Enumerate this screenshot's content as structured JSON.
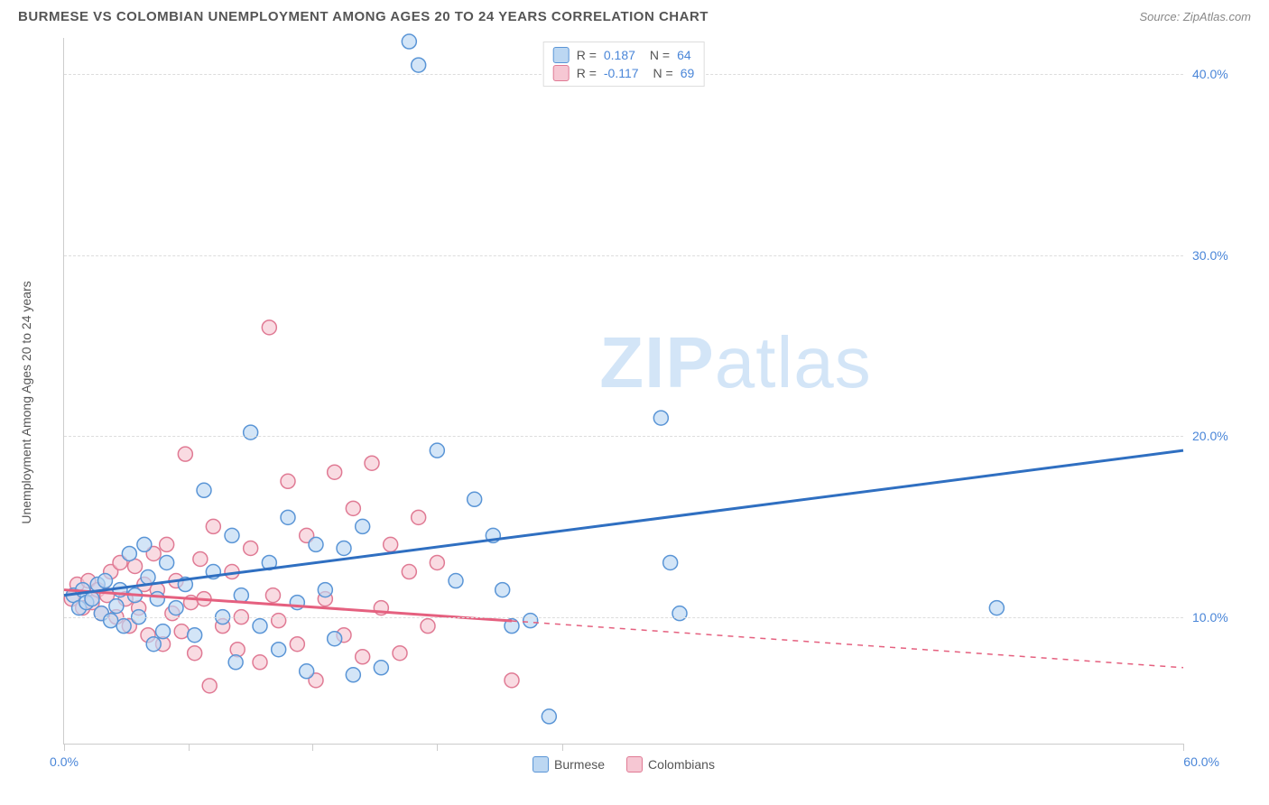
{
  "header": {
    "title": "BURMESE VS COLOMBIAN UNEMPLOYMENT AMONG AGES 20 TO 24 YEARS CORRELATION CHART",
    "source": "Source: ZipAtlas.com"
  },
  "watermark": {
    "zip": "ZIP",
    "atlas": "atlas"
  },
  "axes": {
    "ylabel": "Unemployment Among Ages 20 to 24 years",
    "x_min": 0,
    "x_max": 60,
    "y_min": 3,
    "y_max": 42,
    "x_origin_label": "0.0%",
    "x_max_label": "60.0%",
    "y_ticks": [
      10,
      20,
      30,
      40
    ],
    "y_tick_labels": [
      "10.0%",
      "20.0%",
      "30.0%",
      "40.0%"
    ],
    "x_tick_positions": [
      0,
      6.7,
      13.3,
      20,
      26.7,
      60
    ],
    "grid_color": "#dddddd",
    "axis_color": "#cccccc",
    "tick_label_color": "#4a86d8"
  },
  "series": {
    "burmese": {
      "label": "Burmese",
      "fill": "#bcd7f2",
      "stroke": "#5a95d6",
      "line_color": "#2f6fc1",
      "r_value": "0.187",
      "n_value": "64",
      "marker_r": 8,
      "line_width": 3,
      "trend": {
        "x1": 0,
        "y1": 11.2,
        "x2": 60,
        "y2": 19.2,
        "solid_until_x": 60
      },
      "points": [
        [
          0.5,
          11.2
        ],
        [
          0.8,
          10.5
        ],
        [
          1.0,
          11.5
        ],
        [
          1.2,
          10.8
        ],
        [
          1.5,
          11.0
        ],
        [
          1.8,
          11.8
        ],
        [
          2.0,
          10.2
        ],
        [
          2.2,
          12.0
        ],
        [
          2.5,
          9.8
        ],
        [
          2.8,
          10.6
        ],
        [
          3.0,
          11.5
        ],
        [
          3.2,
          9.5
        ],
        [
          3.5,
          13.5
        ],
        [
          3.8,
          11.2
        ],
        [
          4.0,
          10.0
        ],
        [
          4.3,
          14.0
        ],
        [
          4.5,
          12.2
        ],
        [
          4.8,
          8.5
        ],
        [
          5.0,
          11.0
        ],
        [
          5.3,
          9.2
        ],
        [
          5.5,
          13.0
        ],
        [
          6.0,
          10.5
        ],
        [
          6.5,
          11.8
        ],
        [
          7.0,
          9.0
        ],
        [
          7.5,
          17.0
        ],
        [
          8.0,
          12.5
        ],
        [
          8.5,
          10.0
        ],
        [
          9.0,
          14.5
        ],
        [
          9.2,
          7.5
        ],
        [
          9.5,
          11.2
        ],
        [
          10.0,
          20.2
        ],
        [
          10.5,
          9.5
        ],
        [
          11.0,
          13.0
        ],
        [
          11.5,
          8.2
        ],
        [
          12.0,
          15.5
        ],
        [
          12.5,
          10.8
        ],
        [
          13.0,
          7.0
        ],
        [
          13.5,
          14.0
        ],
        [
          14.0,
          11.5
        ],
        [
          14.5,
          8.8
        ],
        [
          15.0,
          13.8
        ],
        [
          15.5,
          6.8
        ],
        [
          16.0,
          15.0
        ],
        [
          17.0,
          7.2
        ],
        [
          18.5,
          41.8
        ],
        [
          19.0,
          40.5
        ],
        [
          20.0,
          19.2
        ],
        [
          21.0,
          12.0
        ],
        [
          22.0,
          16.5
        ],
        [
          23.0,
          14.5
        ],
        [
          23.5,
          11.5
        ],
        [
          24.0,
          9.5
        ],
        [
          25.0,
          9.8
        ],
        [
          26.0,
          4.5
        ],
        [
          32.0,
          21.0
        ],
        [
          32.5,
          13.0
        ],
        [
          33.0,
          10.2
        ],
        [
          50.0,
          10.5
        ]
      ]
    },
    "colombians": {
      "label": "Colombians",
      "fill": "#f6c7d3",
      "stroke": "#e07a94",
      "line_color": "#e5607f",
      "r_value": "-0.117",
      "n_value": "69",
      "marker_r": 8,
      "line_width": 3,
      "trend": {
        "x1": 0,
        "y1": 11.5,
        "x2": 60,
        "y2": 7.2,
        "solid_until_x": 24
      },
      "points": [
        [
          0.4,
          11.0
        ],
        [
          0.7,
          11.8
        ],
        [
          1.0,
          10.5
        ],
        [
          1.3,
          12.0
        ],
        [
          1.5,
          10.8
        ],
        [
          1.8,
          11.5
        ],
        [
          2.0,
          10.2
        ],
        [
          2.3,
          11.2
        ],
        [
          2.5,
          12.5
        ],
        [
          2.8,
          10.0
        ],
        [
          3.0,
          13.0
        ],
        [
          3.3,
          11.0
        ],
        [
          3.5,
          9.5
        ],
        [
          3.8,
          12.8
        ],
        [
          4.0,
          10.5
        ],
        [
          4.3,
          11.8
        ],
        [
          4.5,
          9.0
        ],
        [
          4.8,
          13.5
        ],
        [
          5.0,
          11.5
        ],
        [
          5.3,
          8.5
        ],
        [
          5.5,
          14.0
        ],
        [
          5.8,
          10.2
        ],
        [
          6.0,
          12.0
        ],
        [
          6.3,
          9.2
        ],
        [
          6.5,
          19.0
        ],
        [
          6.8,
          10.8
        ],
        [
          7.0,
          8.0
        ],
        [
          7.3,
          13.2
        ],
        [
          7.5,
          11.0
        ],
        [
          7.8,
          6.2
        ],
        [
          8.0,
          15.0
        ],
        [
          8.5,
          9.5
        ],
        [
          9.0,
          12.5
        ],
        [
          9.3,
          8.2
        ],
        [
          9.5,
          10.0
        ],
        [
          10.0,
          13.8
        ],
        [
          10.5,
          7.5
        ],
        [
          11.0,
          26.0
        ],
        [
          11.2,
          11.2
        ],
        [
          11.5,
          9.8
        ],
        [
          12.0,
          17.5
        ],
        [
          12.5,
          8.5
        ],
        [
          13.0,
          14.5
        ],
        [
          13.5,
          6.5
        ],
        [
          14.0,
          11.0
        ],
        [
          14.5,
          18.0
        ],
        [
          15.0,
          9.0
        ],
        [
          15.5,
          16.0
        ],
        [
          16.0,
          7.8
        ],
        [
          16.5,
          18.5
        ],
        [
          17.0,
          10.5
        ],
        [
          17.5,
          14.0
        ],
        [
          18.0,
          8.0
        ],
        [
          18.5,
          12.5
        ],
        [
          19.0,
          15.5
        ],
        [
          19.5,
          9.5
        ],
        [
          20.0,
          13.0
        ],
        [
          24.0,
          6.5
        ]
      ]
    }
  },
  "legend_top": {
    "r_label": "R =",
    "n_label": "N ="
  }
}
